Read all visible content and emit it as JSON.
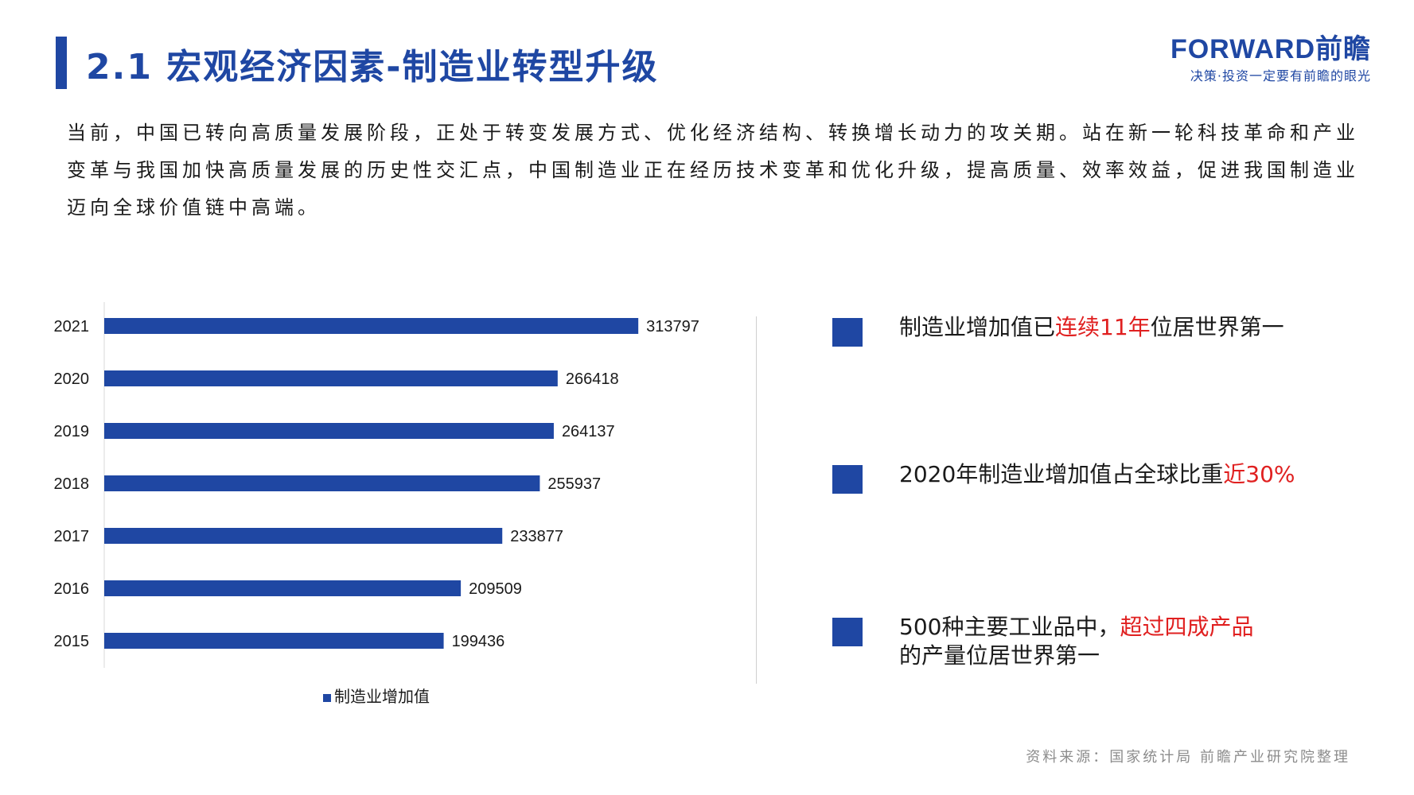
{
  "header": {
    "title": "2.1  宏观经济因素-制造业转型升级",
    "logo_main": "FORWARD前瞻",
    "logo_sub": "决策·投资一定要有前瞻的眼光"
  },
  "intro": {
    "line1": "当前，中国已转向高质量发展阶段，正处于转变发展方式、优化经济结构、转换增长动力的攻关期。站在新一轮科技革命和产业",
    "line2": "变革与我国加快高质量发展的历史性交汇点，中国制造业正在经历技术变革和优化升级，提高质量、效率效益，促进我国制造业",
    "line3": "迈向全球价值链中高端。"
  },
  "chart_data": {
    "type": "bar",
    "orientation": "horizontal",
    "categories": [
      "2021",
      "2020",
      "2019",
      "2018",
      "2017",
      "2016",
      "2015"
    ],
    "series": [
      {
        "name": "制造业增加值",
        "values": [
          313797,
          266418,
          264137,
          255937,
          233877,
          209509,
          199436
        ]
      }
    ],
    "xlim": [
      0,
      350000
    ],
    "grid": false,
    "legend": "bottom"
  },
  "facts": [
    {
      "text": "制造业增加值已",
      "highlight": "连续11年",
      "suffix": "位居世界第一"
    },
    {
      "text": "2020年制造业增加值占全球比重",
      "highlight": "近30%",
      "suffix": ""
    },
    {
      "text": "500种主要工业品中，",
      "highlight": "超过四成产品",
      "line2": "的产量位居世界第一"
    }
  ],
  "source": "资料来源：国家统计局  前瞻产业研究院整理",
  "colors": {
    "accent": "#1f47a3",
    "highlight": "#e02020",
    "text": "#1a1a1a",
    "source": "#8c8c8c"
  }
}
